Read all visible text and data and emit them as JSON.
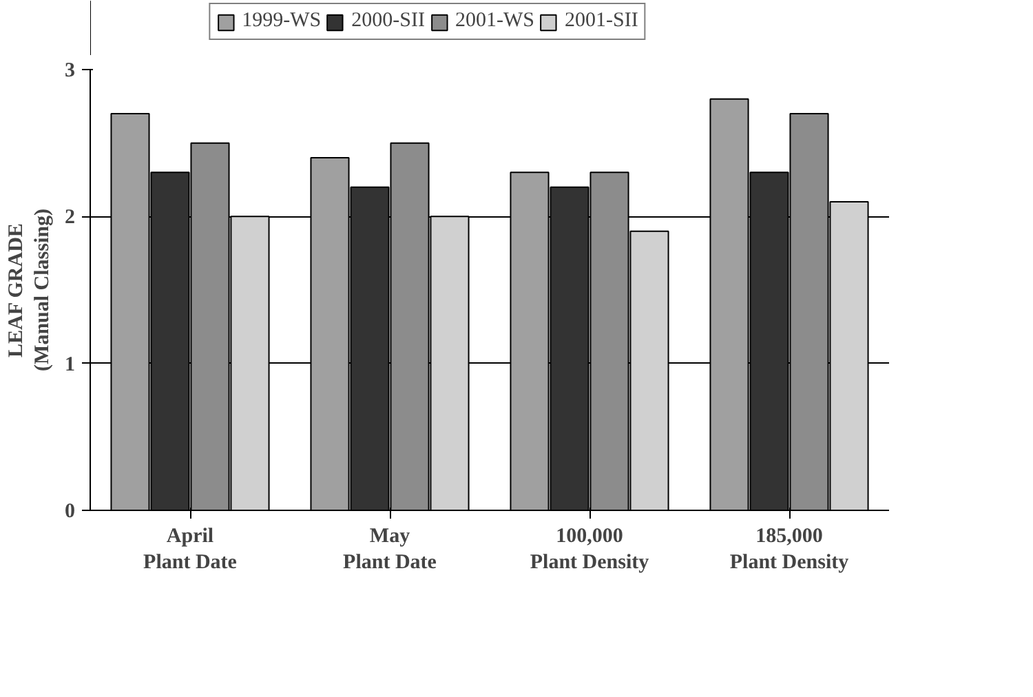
{
  "chart_data": {
    "type": "bar",
    "ylabel": "LEAF GRADE\n(Manual Classing)",
    "categories": [
      "April\nPlant Date",
      "May\nPlant Date",
      "100,000\nPlant Density",
      "185,000\nPlant Density"
    ],
    "series": [
      {
        "name": "1999-WS",
        "color": "#a0a0a0",
        "values": [
          2.7,
          2.4,
          2.3,
          2.8
        ]
      },
      {
        "name": "2000-SII",
        "color": "#333333",
        "values": [
          2.3,
          2.2,
          2.2,
          2.3
        ]
      },
      {
        "name": "2001-WS",
        "color": "#8c8c8c",
        "values": [
          2.5,
          2.5,
          2.3,
          2.7
        ]
      },
      {
        "name": "2001-SII",
        "color": "#d0d0d0",
        "values": [
          2.0,
          2.0,
          1.9,
          2.1
        ]
      }
    ],
    "ylim": [
      0,
      3
    ],
    "yticks": [
      0,
      1,
      2,
      3
    ],
    "grid": "y",
    "legend": "top"
  }
}
